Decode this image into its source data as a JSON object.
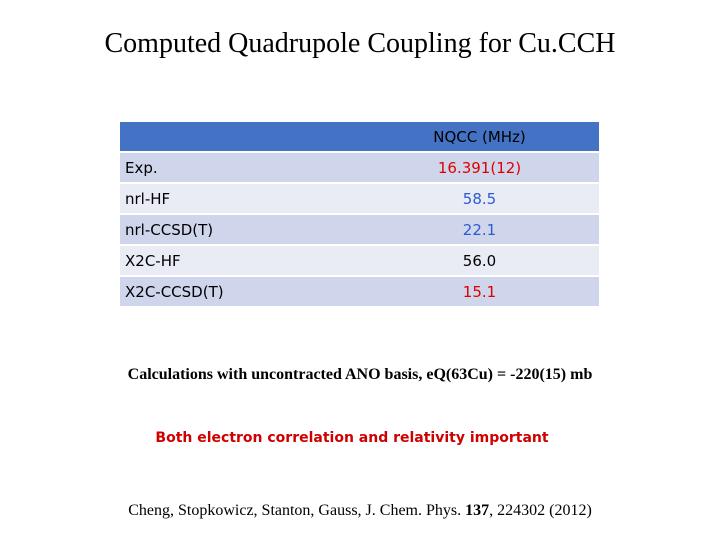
{
  "header": {
    "title": "Computed Quadrupole Coupling for Cu.CCH"
  },
  "table": {
    "columns": [
      "",
      "NQCC (MHz)"
    ],
    "rows": [
      [
        "Exp.",
        "16.391(12)"
      ],
      [
        "nrl-HF",
        "58.5"
      ],
      [
        "nrl-CCSD(T)",
        "22.1"
      ],
      [
        "X2C-HF",
        "56.0"
      ],
      [
        "X2C-CCSD(T)",
        "15.1"
      ]
    ]
  },
  "notes": {
    "calculation": "Calculations with uncontracted ANO basis, eQ(63Cu) = -220(15) mb",
    "conclusion": "Both electron correlation and relativity important"
  },
  "citation": {
    "authors": "Cheng, Stopkowicz, Stanton, Gauss, J. Chem. Phys. ",
    "volume": "137",
    "rest": ", 224302 (2012)"
  }
}
